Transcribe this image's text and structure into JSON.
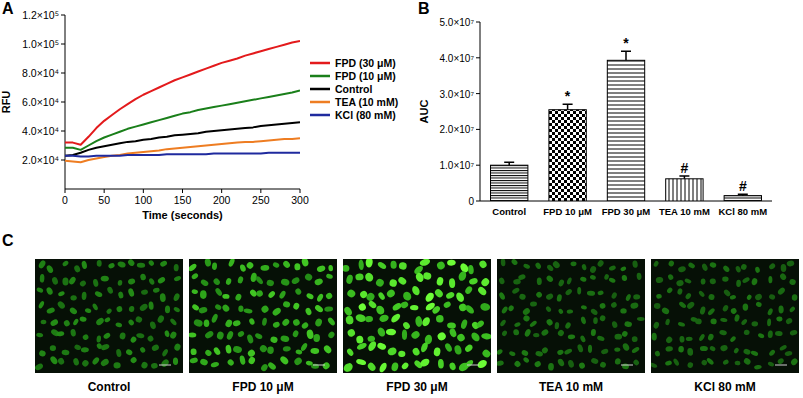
{
  "chart_data": [
    {
      "type": "line",
      "annotations": [
        "A"
      ],
      "x_label": "Time (seconds)",
      "y_label": "RFU",
      "x": [
        0,
        10,
        20,
        30,
        40,
        50,
        60,
        70,
        80,
        90,
        100,
        110,
        120,
        130,
        140,
        150,
        160,
        170,
        180,
        190,
        200,
        210,
        220,
        230,
        240,
        250,
        260,
        270,
        280,
        290,
        300
      ],
      "series": [
        {
          "name": "FPD (30 μM)",
          "color": "#e31a1c",
          "values": [
            32000,
            32000,
            30500,
            36000,
            42000,
            47000,
            51000,
            55000,
            58500,
            62000,
            65000,
            67500,
            70000,
            72500,
            75000,
            77000,
            79000,
            81000,
            83000,
            85000,
            87000,
            88500,
            90000,
            92000,
            93500,
            95000,
            96500,
            98000,
            99500,
            101000,
            102000
          ]
        },
        {
          "name": "FPD (10 μM)",
          "color": "#1a7f1a",
          "values": [
            28500,
            28500,
            27000,
            30000,
            33000,
            35500,
            37500,
            39500,
            41500,
            43000,
            44500,
            46000,
            47500,
            49000,
            50500,
            52000,
            53000,
            54500,
            55500,
            56500,
            57500,
            58500,
            59500,
            60500,
            61500,
            62500,
            63500,
            64500,
            65500,
            66500,
            68000
          ]
        },
        {
          "name": "Control",
          "color": "#000000",
          "values": [
            23000,
            23500,
            25000,
            27000,
            28500,
            29500,
            30500,
            31500,
            32500,
            33000,
            34000,
            34500,
            35500,
            36000,
            37000,
            37500,
            38000,
            38500,
            39500,
            40000,
            40500,
            41000,
            41500,
            42000,
            42500,
            43500,
            44000,
            44500,
            45000,
            45500,
            46000
          ]
        },
        {
          "name": "TEA (10 mM)",
          "color": "#ee7d22",
          "values": [
            19500,
            19000,
            18500,
            20000,
            21000,
            22000,
            23000,
            23500,
            24500,
            25000,
            25500,
            26000,
            26500,
            27500,
            28000,
            28500,
            29000,
            29500,
            30000,
            30500,
            31000,
            31500,
            32000,
            32500,
            32500,
            33000,
            33500,
            34000,
            34500,
            34500,
            35000
          ]
        },
        {
          "name": "KCl (80 mM)",
          "color": "#1f2a9e",
          "values": [
            23000,
            23000,
            22500,
            22500,
            23000,
            23000,
            23000,
            23000,
            23500,
            23500,
            23500,
            23500,
            23500,
            24000,
            24000,
            24000,
            24000,
            24000,
            24000,
            24500,
            24500,
            24500,
            24500,
            24500,
            24500,
            24500,
            25000,
            25000,
            25000,
            25000,
            25000
          ]
        }
      ],
      "xlim": [
        0,
        300
      ],
      "xticks": [
        0,
        50,
        100,
        150,
        200,
        250,
        300
      ],
      "ylim": [
        0,
        120000
      ],
      "yticks": [
        {
          "value": 20000,
          "label": "2.0×10⁴"
        },
        {
          "value": 40000,
          "label": "4.0×10⁴"
        },
        {
          "value": 60000,
          "label": "6.0×10⁴"
        },
        {
          "value": 80000,
          "label": "8.0×10⁴"
        },
        {
          "value": 100000,
          "label": "1.0×10⁵"
        },
        {
          "value": 120000,
          "label": "1.2×10⁵"
        }
      ],
      "legend": "right",
      "grid": false
    },
    {
      "type": "bar",
      "annotations": [
        "B"
      ],
      "y_label": "AUC",
      "categories": [
        "Control",
        "FPD 10 μM",
        "FPD 30 μM",
        "TEA 10 mM",
        "KCl 80 mM"
      ],
      "values": [
        10000000,
        25500000,
        39300000,
        6200000,
        1500000
      ],
      "errors": [
        800000,
        1500000,
        2500000,
        800000,
        400000
      ],
      "significance": [
        null,
        "*",
        "*",
        "#",
        "#"
      ],
      "color": "#000000",
      "ylim": [
        0,
        50000000
      ],
      "yticks": [
        0,
        {
          "value": 10000000,
          "label": "1.0×10⁷"
        },
        {
          "value": 20000000,
          "label": "2.0×10⁷"
        },
        {
          "value": 30000000,
          "label": "3.0×10⁷"
        },
        {
          "value": 40000000,
          "label": "4.0×10⁷"
        },
        {
          "value": 50000000,
          "label": "5.0×10⁷"
        }
      ],
      "grid": false
    }
  ],
  "images": {
    "annotations": [
      "C"
    ],
    "captions": [
      "Control",
      "FPD 10 μM",
      "FPD 30 μM",
      "TEA 10 mM",
      "KCl 80 mM"
    ]
  }
}
